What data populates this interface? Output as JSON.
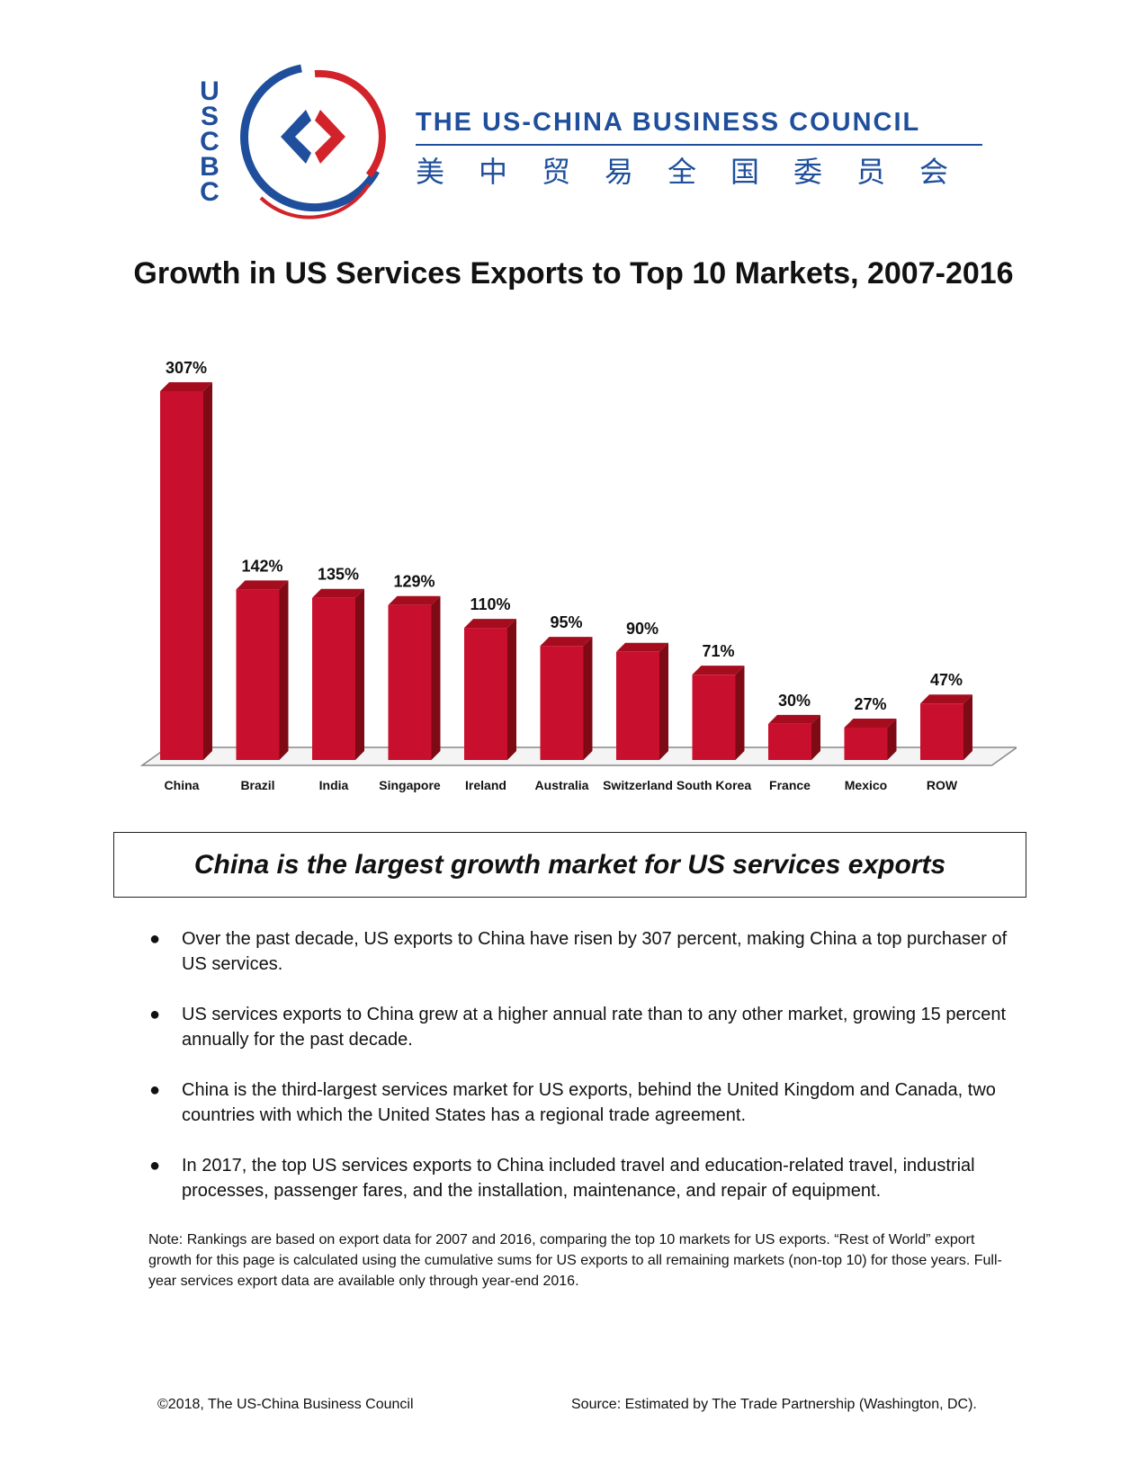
{
  "logo": {
    "letters": [
      "U",
      "S",
      "C",
      "B",
      "C"
    ],
    "org_name": "THE US-CHINA BUSINESS COUNCIL",
    "org_name_chinese": "美中贸易全国委员会",
    "colors": {
      "blue": "#1f4f9c",
      "red": "#d2232a"
    }
  },
  "title": "Growth in US Services Exports to Top 10 Markets, 2007-2016",
  "chart_data": {
    "type": "bar",
    "categories": [
      "China",
      "Brazil",
      "India",
      "Singapore",
      "Ireland",
      "Australia",
      "Switzerland",
      "South Korea",
      "France",
      "Mexico",
      "ROW"
    ],
    "values": [
      307,
      142,
      135,
      129,
      110,
      95,
      90,
      71,
      30,
      27,
      47
    ],
    "data_labels": [
      "307%",
      "142%",
      "135%",
      "129%",
      "110%",
      "95%",
      "90%",
      "71%",
      "30%",
      "27%",
      "47%"
    ],
    "unit": "%",
    "title": "",
    "xlabel": "",
    "ylabel": "",
    "ylim": [
      0,
      307
    ],
    "grid": false,
    "bar_color": "#c8102e"
  },
  "callout": "China is the largest growth market for US services exports",
  "bullets": [
    "Over the past decade, US exports to China have risen by 307 percent, making China a top purchaser of US services.",
    "US services exports to China grew at a higher annual rate than to any other market, growing 15 percent annually for the past decade.",
    "China is the third-largest services market for US exports, behind the United Kingdom and Canada, two countries with which the United States has a regional trade agreement.",
    "In 2017, the top US services exports to China included travel and education-related travel, industrial processes, passenger fares, and the installation, maintenance, and repair of equipment."
  ],
  "note": "Note: Rankings are based on export data for 2007 and 2016, comparing the top 10 markets for US exports. “Rest of World” export growth for this page is calculated using the cumulative sums for US exports to all remaining markets (non-top 10) for those years. Full-year services export data are available only through year-end 2016.",
  "footer": {
    "copyright": "©2018, The US-China Business Council",
    "source": "Source: Estimated by The Trade Partnership (Washington, DC)."
  }
}
